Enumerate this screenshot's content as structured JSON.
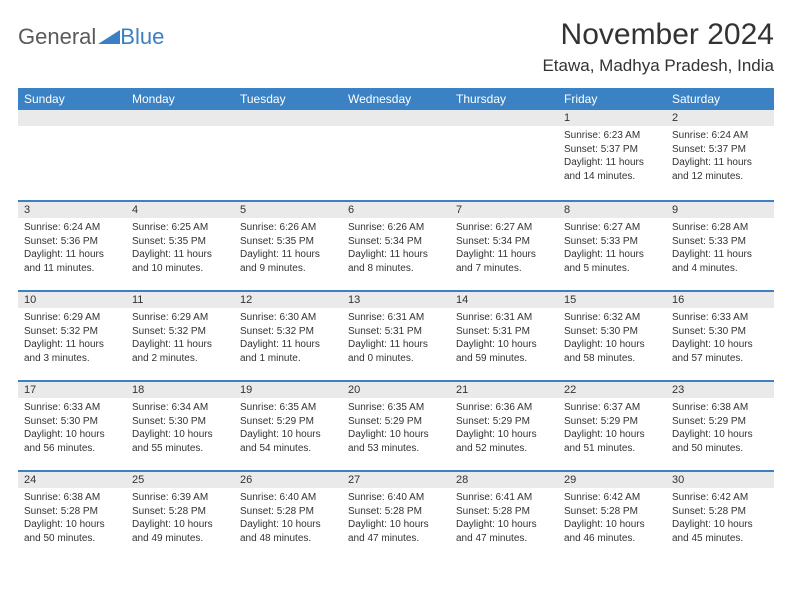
{
  "brand": {
    "general": "General",
    "blue": "Blue"
  },
  "title": "November 2024",
  "location": "Etawa, Madhya Pradesh, India",
  "colors": {
    "header_bg": "#3b82c4",
    "header_text": "#ffffff",
    "daynum_bg": "#eaeaea",
    "row_divider": "#3b82c4",
    "text": "#333333",
    "logo_general": "#5a5a5a",
    "logo_blue": "#3b7fc4",
    "page_bg": "#ffffff"
  },
  "typography": {
    "title_fontsize": 30,
    "location_fontsize": 17,
    "weekday_fontsize": 12,
    "daynum_fontsize": 11,
    "body_fontsize": 10
  },
  "weekdays": [
    "Sunday",
    "Monday",
    "Tuesday",
    "Wednesday",
    "Thursday",
    "Friday",
    "Saturday"
  ],
  "weeks": [
    [
      null,
      null,
      null,
      null,
      null,
      {
        "n": "1",
        "sunrise": "6:23 AM",
        "sunset": "5:37 PM",
        "daylight": "11 hours and 14 minutes."
      },
      {
        "n": "2",
        "sunrise": "6:24 AM",
        "sunset": "5:37 PM",
        "daylight": "11 hours and 12 minutes."
      }
    ],
    [
      {
        "n": "3",
        "sunrise": "6:24 AM",
        "sunset": "5:36 PM",
        "daylight": "11 hours and 11 minutes."
      },
      {
        "n": "4",
        "sunrise": "6:25 AM",
        "sunset": "5:35 PM",
        "daylight": "11 hours and 10 minutes."
      },
      {
        "n": "5",
        "sunrise": "6:26 AM",
        "sunset": "5:35 PM",
        "daylight": "11 hours and 9 minutes."
      },
      {
        "n": "6",
        "sunrise": "6:26 AM",
        "sunset": "5:34 PM",
        "daylight": "11 hours and 8 minutes."
      },
      {
        "n": "7",
        "sunrise": "6:27 AM",
        "sunset": "5:34 PM",
        "daylight": "11 hours and 7 minutes."
      },
      {
        "n": "8",
        "sunrise": "6:27 AM",
        "sunset": "5:33 PM",
        "daylight": "11 hours and 5 minutes."
      },
      {
        "n": "9",
        "sunrise": "6:28 AM",
        "sunset": "5:33 PM",
        "daylight": "11 hours and 4 minutes."
      }
    ],
    [
      {
        "n": "10",
        "sunrise": "6:29 AM",
        "sunset": "5:32 PM",
        "daylight": "11 hours and 3 minutes."
      },
      {
        "n": "11",
        "sunrise": "6:29 AM",
        "sunset": "5:32 PM",
        "daylight": "11 hours and 2 minutes."
      },
      {
        "n": "12",
        "sunrise": "6:30 AM",
        "sunset": "5:32 PM",
        "daylight": "11 hours and 1 minute."
      },
      {
        "n": "13",
        "sunrise": "6:31 AM",
        "sunset": "5:31 PM",
        "daylight": "11 hours and 0 minutes."
      },
      {
        "n": "14",
        "sunrise": "6:31 AM",
        "sunset": "5:31 PM",
        "daylight": "10 hours and 59 minutes."
      },
      {
        "n": "15",
        "sunrise": "6:32 AM",
        "sunset": "5:30 PM",
        "daylight": "10 hours and 58 minutes."
      },
      {
        "n": "16",
        "sunrise": "6:33 AM",
        "sunset": "5:30 PM",
        "daylight": "10 hours and 57 minutes."
      }
    ],
    [
      {
        "n": "17",
        "sunrise": "6:33 AM",
        "sunset": "5:30 PM",
        "daylight": "10 hours and 56 minutes."
      },
      {
        "n": "18",
        "sunrise": "6:34 AM",
        "sunset": "5:30 PM",
        "daylight": "10 hours and 55 minutes."
      },
      {
        "n": "19",
        "sunrise": "6:35 AM",
        "sunset": "5:29 PM",
        "daylight": "10 hours and 54 minutes."
      },
      {
        "n": "20",
        "sunrise": "6:35 AM",
        "sunset": "5:29 PM",
        "daylight": "10 hours and 53 minutes."
      },
      {
        "n": "21",
        "sunrise": "6:36 AM",
        "sunset": "5:29 PM",
        "daylight": "10 hours and 52 minutes."
      },
      {
        "n": "22",
        "sunrise": "6:37 AM",
        "sunset": "5:29 PM",
        "daylight": "10 hours and 51 minutes."
      },
      {
        "n": "23",
        "sunrise": "6:38 AM",
        "sunset": "5:29 PM",
        "daylight": "10 hours and 50 minutes."
      }
    ],
    [
      {
        "n": "24",
        "sunrise": "6:38 AM",
        "sunset": "5:28 PM",
        "daylight": "10 hours and 50 minutes."
      },
      {
        "n": "25",
        "sunrise": "6:39 AM",
        "sunset": "5:28 PM",
        "daylight": "10 hours and 49 minutes."
      },
      {
        "n": "26",
        "sunrise": "6:40 AM",
        "sunset": "5:28 PM",
        "daylight": "10 hours and 48 minutes."
      },
      {
        "n": "27",
        "sunrise": "6:40 AM",
        "sunset": "5:28 PM",
        "daylight": "10 hours and 47 minutes."
      },
      {
        "n": "28",
        "sunrise": "6:41 AM",
        "sunset": "5:28 PM",
        "daylight": "10 hours and 47 minutes."
      },
      {
        "n": "29",
        "sunrise": "6:42 AM",
        "sunset": "5:28 PM",
        "daylight": "10 hours and 46 minutes."
      },
      {
        "n": "30",
        "sunrise": "6:42 AM",
        "sunset": "5:28 PM",
        "daylight": "10 hours and 45 minutes."
      }
    ]
  ],
  "labels": {
    "sunrise": "Sunrise: ",
    "sunset": "Sunset: ",
    "daylight": "Daylight: "
  }
}
